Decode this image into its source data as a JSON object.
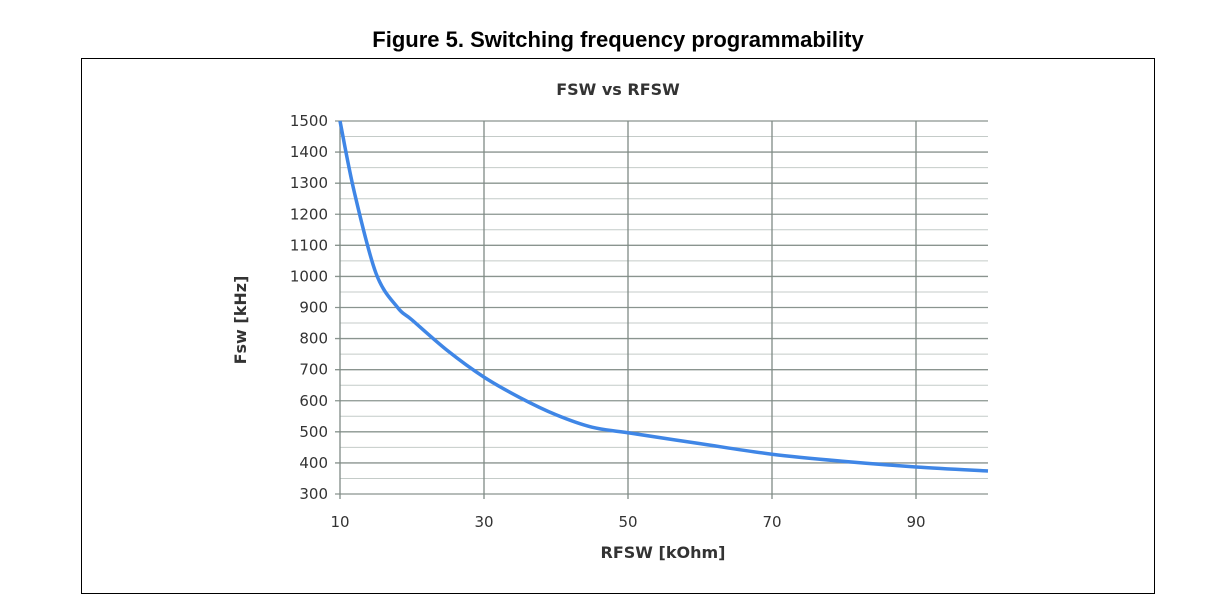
{
  "figure_title": "Figure 5. Switching frequency programmability",
  "chart_data": {
    "type": "line",
    "title": "FSW vs RFSW",
    "xlabel": "RFSW [kOhm]",
    "ylabel": "Fsw [kHz]",
    "xlim": [
      10,
      100
    ],
    "ylim": [
      300,
      1500
    ],
    "x_ticks": [
      10,
      30,
      50,
      70,
      90
    ],
    "y_ticks": [
      300,
      400,
      500,
      600,
      700,
      800,
      900,
      1000,
      1100,
      1200,
      1300,
      1400,
      1500
    ],
    "grid": true,
    "legend": "none",
    "series": [
      {
        "color": "#3f86e6",
        "x": [
          10,
          12,
          15,
          18,
          20,
          25,
          30,
          35,
          40,
          45,
          50,
          60,
          70,
          80,
          90,
          100
        ],
        "y": [
          1500,
          1270,
          1010,
          900,
          860,
          760,
          676,
          610,
          555,
          515,
          497,
          462,
          428,
          405,
          387,
          374
        ]
      }
    ]
  }
}
